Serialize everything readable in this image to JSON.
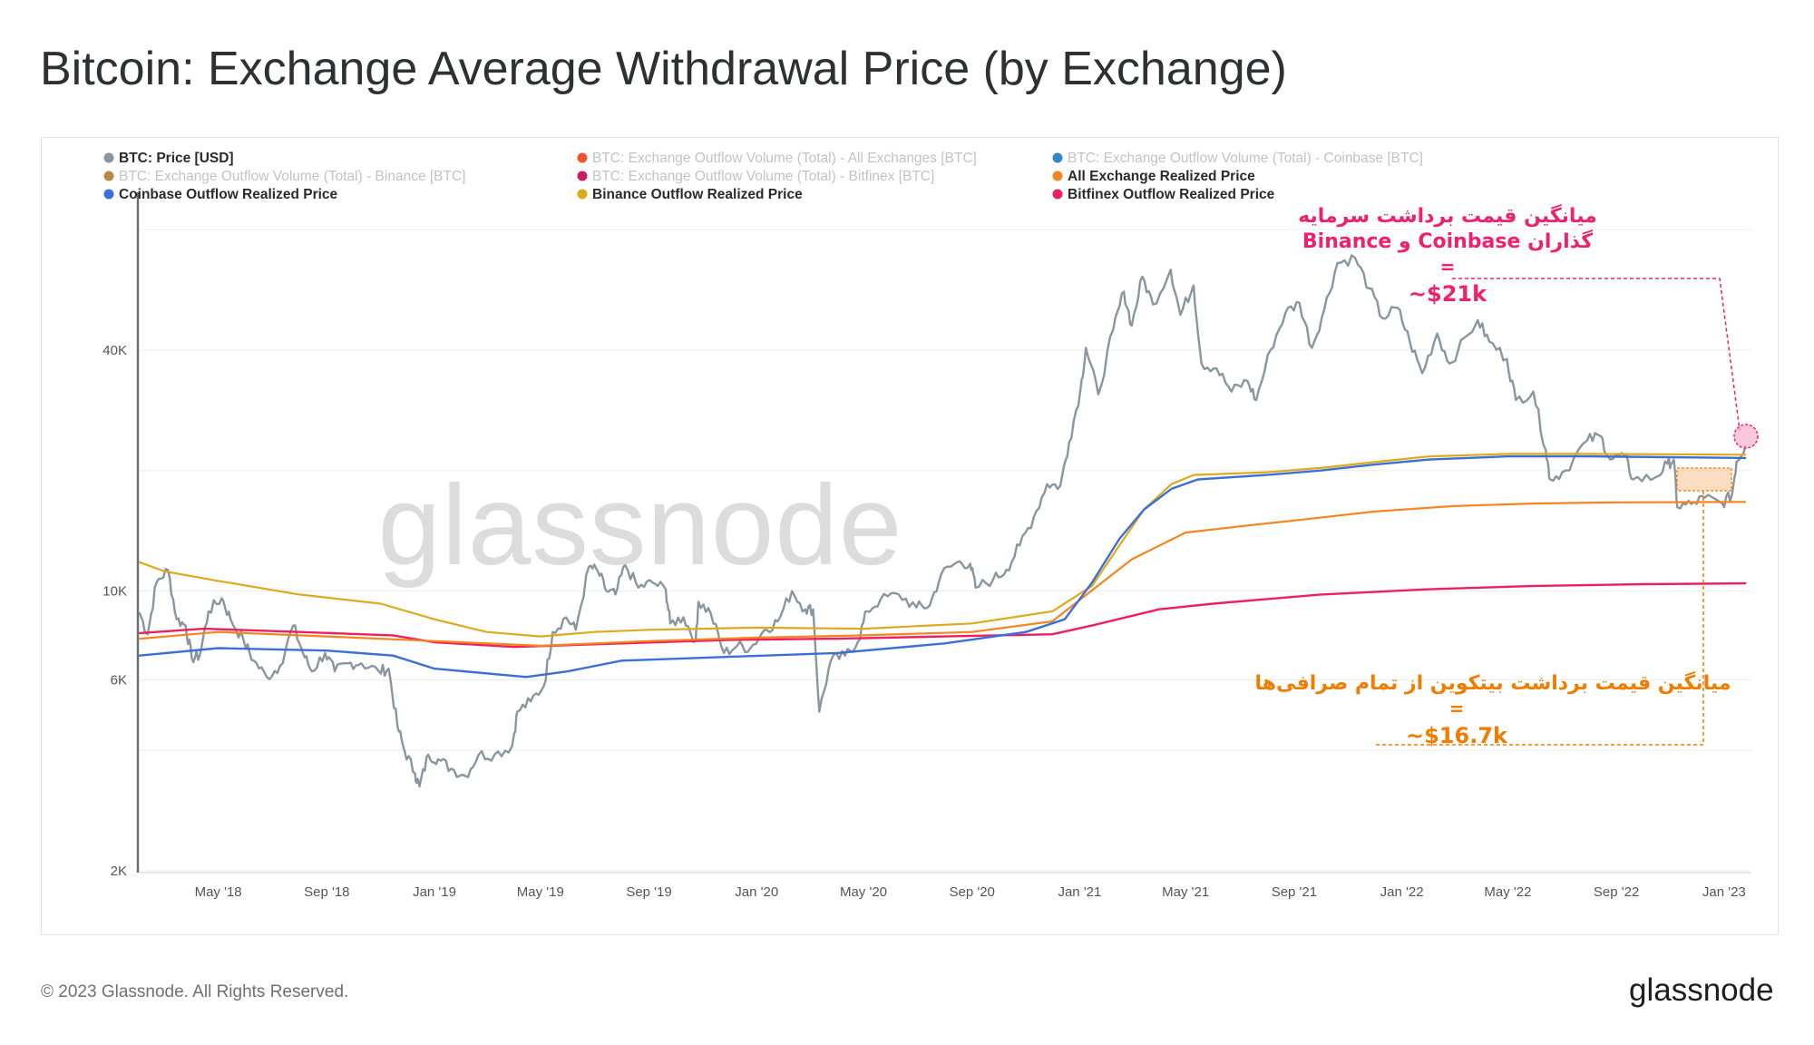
{
  "title": "Bitcoin: Exchange Average Withdrawal Price (by Exchange)",
  "footer": {
    "copyright": "© 2023 Glassnode. All Rights Reserved.",
    "logo": "glassnode"
  },
  "watermark": "glassnode",
  "colors": {
    "price": "#8a969f",
    "all_exchange": "#f4851f",
    "coinbase": "#3b6fd8",
    "binance": "#dea91c",
    "bitfinex": "#ee1f5f",
    "annotation_pink": "#f0206e",
    "annotation_orange": "#f07d00"
  },
  "legend": [
    {
      "label": "BTC: Price [USD]",
      "color": "#8a969f",
      "active": true
    },
    {
      "label": "BTC: Exchange Outflow Volume (Total) - All Exchanges [BTC]",
      "color": "#f0542a",
      "active": false
    },
    {
      "label": "BTC: Exchange Outflow Volume (Total) - Coinbase [BTC]",
      "color": "#2f89c7",
      "active": false
    },
    {
      "label": "BTC: Exchange Outflow Volume (Total) - Binance [BTC]",
      "color": "#b98646",
      "active": false
    },
    {
      "label": "BTC: Exchange Outflow Volume (Total) - Bitfinex [BTC]",
      "color": "#c81d63",
      "active": false
    },
    {
      "label": "All Exchange Realized Price",
      "color": "#f4851f",
      "active": true
    },
    {
      "label": "Coinbase Outflow Realized Price",
      "color": "#3b6fd8",
      "active": true
    },
    {
      "label": "Binance Outflow Realized Price",
      "color": "#dea91c",
      "active": true
    },
    {
      "label": "Bitfinex Outflow Realized Price",
      "color": "#ee1f5f",
      "active": true
    }
  ],
  "annotations": {
    "top": {
      "line1": "میانگین قیمت برداشت سرمایه",
      "line2": "گذاران Coinbase و Binance",
      "line3": "=",
      "line4": "~$21k"
    },
    "bottom": {
      "line1": "میانگین قیمت برداشت بیتکوین از تمام صرافی‌ها",
      "line2": "=",
      "line3": "~$16.7k"
    }
  },
  "chart_data": {
    "type": "line",
    "y_scale": "log",
    "ylim": [
      2000,
      110000
    ],
    "xlim": [
      "2018-02-01",
      "2023-02-01"
    ],
    "y_ticks": [
      {
        "value": 2000,
        "label": "2K"
      },
      {
        "value": 6000,
        "label": "6K"
      },
      {
        "value": 10000,
        "label": "10K"
      },
      {
        "value": 40000,
        "label": "40K"
      }
    ],
    "x_ticks": [
      {
        "date": "2018-05-01",
        "label": "May '18"
      },
      {
        "date": "2018-09-01",
        "label": "Sep '18"
      },
      {
        "date": "2019-01-01",
        "label": "Jan '19"
      },
      {
        "date": "2019-05-01",
        "label": "May '19"
      },
      {
        "date": "2019-09-01",
        "label": "Sep '19"
      },
      {
        "date": "2020-01-01",
        "label": "Jan '20"
      },
      {
        "date": "2020-05-01",
        "label": "May '20"
      },
      {
        "date": "2020-09-01",
        "label": "Sep '20"
      },
      {
        "date": "2021-01-01",
        "label": "Jan '21"
      },
      {
        "date": "2021-05-01",
        "label": "May '21"
      },
      {
        "date": "2021-09-01",
        "label": "Sep '21"
      },
      {
        "date": "2022-01-01",
        "label": "Jan '22"
      },
      {
        "date": "2022-05-01",
        "label": "May '22"
      },
      {
        "date": "2022-09-01",
        "label": "Sep '22"
      },
      {
        "date": "2023-01-01",
        "label": "Jan '23"
      }
    ],
    "series": [
      {
        "name": "BTC: Price [USD]",
        "key": "price",
        "points": [
          [
            "2018-02-01",
            8800
          ],
          [
            "2018-02-10",
            7800
          ],
          [
            "2018-02-20",
            10500
          ],
          [
            "2018-03-05",
            11300
          ],
          [
            "2018-03-15",
            8500
          ],
          [
            "2018-03-25",
            8200
          ],
          [
            "2018-04-01",
            6800
          ],
          [
            "2018-04-10",
            6900
          ],
          [
            "2018-04-20",
            8900
          ],
          [
            "2018-05-05",
            9600
          ],
          [
            "2018-05-15",
            8500
          ],
          [
            "2018-05-30",
            7500
          ],
          [
            "2018-06-10",
            6700
          ],
          [
            "2018-06-25",
            6100
          ],
          [
            "2018-07-10",
            6500
          ],
          [
            "2018-07-25",
            8200
          ],
          [
            "2018-08-05",
            7000
          ],
          [
            "2018-08-15",
            6300
          ],
          [
            "2018-08-30",
            7000
          ],
          [
            "2018-09-10",
            6300
          ],
          [
            "2018-09-25",
            6600
          ],
          [
            "2018-10-10",
            6600
          ],
          [
            "2018-10-30",
            6300
          ],
          [
            "2018-11-10",
            6400
          ],
          [
            "2018-11-20",
            4600
          ],
          [
            "2018-11-28",
            4000
          ],
          [
            "2018-12-10",
            3500
          ],
          [
            "2018-12-15",
            3250
          ],
          [
            "2018-12-25",
            3900
          ],
          [
            "2019-01-05",
            3800
          ],
          [
            "2019-01-20",
            3600
          ],
          [
            "2019-02-05",
            3450
          ],
          [
            "2019-02-20",
            3900
          ],
          [
            "2019-03-10",
            3900
          ],
          [
            "2019-03-30",
            4100
          ],
          [
            "2019-04-05",
            5000
          ],
          [
            "2019-04-20",
            5300
          ],
          [
            "2019-05-05",
            5800
          ],
          [
            "2019-05-15",
            7900
          ],
          [
            "2019-05-30",
            8600
          ],
          [
            "2019-06-10",
            8000
          ],
          [
            "2019-06-25",
            11500
          ],
          [
            "2019-07-05",
            11200
          ],
          [
            "2019-07-15",
            10000
          ],
          [
            "2019-07-25",
            9800
          ],
          [
            "2019-08-05",
            11600
          ],
          [
            "2019-08-20",
            10200
          ],
          [
            "2019-09-05",
            10500
          ],
          [
            "2019-09-20",
            10100
          ],
          [
            "2019-09-25",
            8300
          ],
          [
            "2019-10-10",
            8600
          ],
          [
            "2019-10-24",
            7500
          ],
          [
            "2019-10-27",
            9400
          ],
          [
            "2019-11-10",
            8800
          ],
          [
            "2019-11-25",
            7000
          ],
          [
            "2019-12-10",
            7300
          ],
          [
            "2019-12-25",
            7200
          ],
          [
            "2020-01-10",
            8000
          ],
          [
            "2020-01-25",
            8400
          ],
          [
            "2020-02-10",
            10000
          ],
          [
            "2020-02-25",
            9000
          ],
          [
            "2020-03-05",
            9000
          ],
          [
            "2020-03-12",
            5000
          ],
          [
            "2020-03-25",
            6700
          ],
          [
            "2020-04-10",
            6900
          ],
          [
            "2020-04-25",
            7500
          ],
          [
            "2020-05-05",
            8900
          ],
          [
            "2020-05-20",
            9500
          ],
          [
            "2020-06-10",
            9800
          ],
          [
            "2020-06-30",
            9100
          ],
          [
            "2020-07-15",
            9200
          ],
          [
            "2020-07-28",
            11000
          ],
          [
            "2020-08-15",
            11800
          ],
          [
            "2020-08-30",
            11700
          ],
          [
            "2020-09-05",
            10200
          ],
          [
            "2020-09-25",
            10700
          ],
          [
            "2020-10-10",
            11300
          ],
          [
            "2020-10-25",
            13000
          ],
          [
            "2020-11-10",
            15300
          ],
          [
            "2020-11-25",
            18500
          ],
          [
            "2020-12-10",
            18300
          ],
          [
            "2020-12-20",
            23500
          ],
          [
            "2021-01-02",
            32000
          ],
          [
            "2021-01-08",
            40500
          ],
          [
            "2021-01-22",
            31000
          ],
          [
            "2021-02-08",
            45000
          ],
          [
            "2021-02-20",
            56000
          ],
          [
            "2021-03-01",
            46000
          ],
          [
            "2021-03-13",
            61000
          ],
          [
            "2021-03-25",
            52000
          ],
          [
            "2021-04-14",
            63500
          ],
          [
            "2021-04-25",
            49000
          ],
          [
            "2021-05-10",
            58000
          ],
          [
            "2021-05-19",
            37000
          ],
          [
            "2021-06-05",
            36000
          ],
          [
            "2021-06-22",
            31500
          ],
          [
            "2021-07-10",
            33500
          ],
          [
            "2021-07-20",
            30000
          ],
          [
            "2021-08-05",
            40000
          ],
          [
            "2021-08-22",
            49500
          ],
          [
            "2021-09-07",
            52500
          ],
          [
            "2021-09-21",
            40500
          ],
          [
            "2021-10-05",
            50500
          ],
          [
            "2021-10-20",
            66000
          ],
          [
            "2021-11-09",
            68000
          ],
          [
            "2021-11-25",
            57000
          ],
          [
            "2021-12-10",
            48000
          ],
          [
            "2021-12-27",
            51000
          ],
          [
            "2022-01-10",
            42000
          ],
          [
            "2022-01-24",
            35000
          ],
          [
            "2022-02-10",
            44000
          ],
          [
            "2022-02-24",
            37000
          ],
          [
            "2022-03-28",
            47500
          ],
          [
            "2022-04-10",
            42000
          ],
          [
            "2022-04-30",
            38000
          ],
          [
            "2022-05-10",
            30000
          ],
          [
            "2022-05-30",
            31500
          ],
          [
            "2022-06-13",
            22500
          ],
          [
            "2022-06-18",
            19000
          ],
          [
            "2022-07-05",
            20000
          ],
          [
            "2022-07-30",
            23800
          ],
          [
            "2022-08-14",
            24400
          ],
          [
            "2022-08-25",
            21300
          ],
          [
            "2022-09-10",
            21800
          ],
          [
            "2022-09-20",
            19000
          ],
          [
            "2022-10-15",
            19200
          ],
          [
            "2022-10-29",
            20800
          ],
          [
            "2022-11-05",
            21300
          ],
          [
            "2022-11-09",
            16200
          ],
          [
            "2022-11-25",
            16500
          ],
          [
            "2022-12-10",
            17100
          ],
          [
            "2022-12-30",
            16550
          ],
          [
            "2023-01-10",
            17400
          ],
          [
            "2023-01-15",
            21000
          ],
          [
            "2023-01-25",
            23000
          ]
        ]
      },
      {
        "name": "All Exchange Realized Price",
        "key": "all_exchange",
        "points": [
          [
            "2018-02-01",
            7600
          ],
          [
            "2018-05-01",
            7900
          ],
          [
            "2018-09-01",
            7700
          ],
          [
            "2019-01-01",
            7500
          ],
          [
            "2019-05-01",
            7300
          ],
          [
            "2019-09-01",
            7500
          ],
          [
            "2020-01-01",
            7650
          ],
          [
            "2020-05-01",
            7750
          ],
          [
            "2020-09-01",
            7900
          ],
          [
            "2020-12-01",
            8400
          ],
          [
            "2021-01-01",
            9500
          ],
          [
            "2021-03-01",
            12000
          ],
          [
            "2021-05-01",
            14000
          ],
          [
            "2021-07-01",
            14500
          ],
          [
            "2021-09-01",
            15000
          ],
          [
            "2021-12-01",
            15800
          ],
          [
            "2022-03-01",
            16300
          ],
          [
            "2022-06-01",
            16550
          ],
          [
            "2022-09-01",
            16650
          ],
          [
            "2023-01-25",
            16700
          ]
        ]
      },
      {
        "name": "Coinbase Outflow Realized Price",
        "key": "coinbase",
        "points": [
          [
            "2018-02-01",
            6900
          ],
          [
            "2018-05-01",
            7200
          ],
          [
            "2018-09-01",
            7100
          ],
          [
            "2018-11-15",
            6900
          ],
          [
            "2019-01-01",
            6400
          ],
          [
            "2019-04-15",
            6100
          ],
          [
            "2019-06-01",
            6300
          ],
          [
            "2019-08-01",
            6700
          ],
          [
            "2019-12-01",
            6850
          ],
          [
            "2020-04-01",
            7000
          ],
          [
            "2020-08-01",
            7400
          ],
          [
            "2020-11-01",
            7900
          ],
          [
            "2020-12-15",
            8500
          ],
          [
            "2021-01-15",
            10500
          ],
          [
            "2021-02-15",
            13500
          ],
          [
            "2021-03-15",
            16000
          ],
          [
            "2021-04-15",
            18000
          ],
          [
            "2021-05-15",
            19000
          ],
          [
            "2021-08-01",
            19500
          ],
          [
            "2021-10-01",
            20000
          ],
          [
            "2021-12-01",
            20700
          ],
          [
            "2022-02-01",
            21300
          ],
          [
            "2022-05-01",
            21700
          ],
          [
            "2022-08-01",
            21700
          ],
          [
            "2023-01-25",
            21500
          ]
        ]
      },
      {
        "name": "Binance Outflow Realized Price",
        "key": "binance",
        "points": [
          [
            "2018-02-01",
            11800
          ],
          [
            "2018-03-01",
            11200
          ],
          [
            "2018-05-01",
            10600
          ],
          [
            "2018-08-01",
            9800
          ],
          [
            "2018-11-01",
            9300
          ],
          [
            "2019-01-01",
            8500
          ],
          [
            "2019-03-01",
            7900
          ],
          [
            "2019-05-01",
            7700
          ],
          [
            "2019-07-01",
            7900
          ],
          [
            "2019-09-01",
            8000
          ],
          [
            "2020-01-01",
            8100
          ],
          [
            "2020-05-01",
            8050
          ],
          [
            "2020-09-01",
            8300
          ],
          [
            "2020-12-01",
            8900
          ],
          [
            "2021-01-15",
            10300
          ],
          [
            "2021-02-15",
            13000
          ],
          [
            "2021-03-15",
            16000
          ],
          [
            "2021-04-15",
            18500
          ],
          [
            "2021-05-10",
            19500
          ],
          [
            "2021-08-01",
            19800
          ],
          [
            "2021-10-01",
            20300
          ],
          [
            "2021-12-01",
            21000
          ],
          [
            "2022-02-01",
            21700
          ],
          [
            "2022-05-01",
            22000
          ],
          [
            "2022-08-01",
            22000
          ],
          [
            "2023-01-25",
            21900
          ]
        ]
      },
      {
        "name": "Bitfinex Outflow Realized Price",
        "key": "bitfinex",
        "points": [
          [
            "2018-02-01",
            7850
          ],
          [
            "2018-04-15",
            8050
          ],
          [
            "2018-08-01",
            7900
          ],
          [
            "2018-11-15",
            7750
          ],
          [
            "2019-01-01",
            7450
          ],
          [
            "2019-04-01",
            7250
          ],
          [
            "2019-08-01",
            7400
          ],
          [
            "2019-12-01",
            7550
          ],
          [
            "2020-04-01",
            7600
          ],
          [
            "2020-08-01",
            7700
          ],
          [
            "2020-12-01",
            7800
          ],
          [
            "2021-01-15",
            8200
          ],
          [
            "2021-04-01",
            9000
          ],
          [
            "2021-06-01",
            9300
          ],
          [
            "2021-10-01",
            9800
          ],
          [
            "2022-02-01",
            10100
          ],
          [
            "2022-06-01",
            10300
          ],
          [
            "2022-10-01",
            10400
          ],
          [
            "2023-01-25",
            10450
          ]
        ]
      }
    ]
  }
}
